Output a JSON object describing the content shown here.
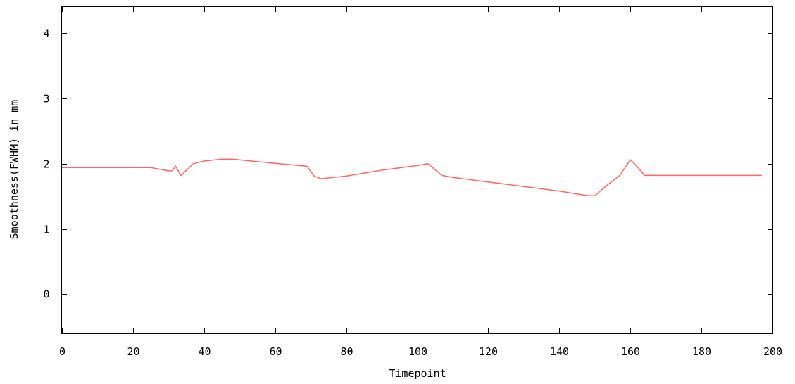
{
  "chart_data": {
    "type": "line",
    "title": "",
    "xlabel": "Timepoint",
    "ylabel": "Smoothness(FWHM) in mm",
    "xlim": [
      0,
      200
    ],
    "ylim": [
      -0.6,
      4.4
    ],
    "x_ticks": [
      "0",
      "20",
      "40",
      "60",
      "80",
      "100",
      "120",
      "140",
      "160",
      "180",
      "200"
    ],
    "y_ticks": [
      "0",
      "1",
      "2",
      "3",
      "4"
    ],
    "grid": false,
    "legend": "none",
    "series": [
      {
        "color": "#ff6666",
        "x": [
          0,
          25,
          30,
          31,
          32,
          33.5,
          37,
          40,
          45,
          48,
          55,
          63,
          69,
          71,
          73,
          80,
          90,
          101,
          103,
          107,
          110,
          120,
          130,
          140,
          148,
          150,
          153,
          157,
          160,
          162,
          164,
          170,
          180,
          197
        ],
        "y": [
          1.94,
          1.94,
          1.89,
          1.89,
          1.96,
          1.82,
          2.0,
          2.04,
          2.07,
          2.07,
          2.03,
          1.99,
          1.96,
          1.81,
          1.77,
          1.81,
          1.9,
          1.98,
          2.0,
          1.82,
          1.79,
          1.72,
          1.65,
          1.58,
          1.51,
          1.51,
          1.65,
          1.82,
          2.06,
          1.95,
          1.82,
          1.82,
          1.82,
          1.82
        ]
      }
    ]
  }
}
